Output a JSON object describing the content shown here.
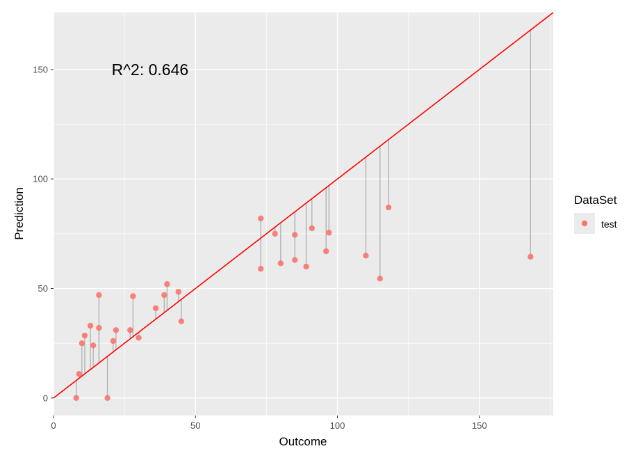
{
  "chart_data": {
    "type": "scatter",
    "xlabel": "Outcome",
    "ylabel": "Prediction",
    "xlim": [
      0,
      176
    ],
    "ylim": [
      -8,
      176
    ],
    "x_ticks": [
      0,
      50,
      100,
      150
    ],
    "x_tick_labels": [
      "0",
      "50",
      "100",
      "150"
    ],
    "y_ticks": [
      0,
      50,
      100,
      150
    ],
    "y_tick_labels": [
      "0",
      "50",
      "100",
      "150"
    ],
    "grid": true,
    "annotation": {
      "text": "R^2: 0.646",
      "x": 34,
      "y": 150
    },
    "reference_line": {
      "type": "identity",
      "color": "#ff0000"
    },
    "residual_segment_color": "#b3b3b3",
    "legend": {
      "title": "DataSet",
      "placement": "right",
      "entries": [
        {
          "label": "test",
          "color": "#f8766d"
        }
      ]
    },
    "series": [
      {
        "name": "test",
        "color": "#f8766d",
        "points": [
          {
            "x": 8,
            "y": 0
          },
          {
            "x": 9,
            "y": 11
          },
          {
            "x": 10,
            "y": 25
          },
          {
            "x": 11,
            "y": 28.5
          },
          {
            "x": 13,
            "y": 33
          },
          {
            "x": 14,
            "y": 24
          },
          {
            "x": 16,
            "y": 47
          },
          {
            "x": 16,
            "y": 32
          },
          {
            "x": 19,
            "y": 0
          },
          {
            "x": 21,
            "y": 26
          },
          {
            "x": 22,
            "y": 31
          },
          {
            "x": 27,
            "y": 31
          },
          {
            "x": 28,
            "y": 46.5
          },
          {
            "x": 30,
            "y": 27.5
          },
          {
            "x": 36,
            "y": 41
          },
          {
            "x": 39,
            "y": 47
          },
          {
            "x": 40,
            "y": 52
          },
          {
            "x": 44,
            "y": 48.5
          },
          {
            "x": 45,
            "y": 35
          },
          {
            "x": 73,
            "y": 82
          },
          {
            "x": 73,
            "y": 59
          },
          {
            "x": 78,
            "y": 75
          },
          {
            "x": 80,
            "y": 61.5
          },
          {
            "x": 85,
            "y": 74.5
          },
          {
            "x": 85,
            "y": 63
          },
          {
            "x": 89,
            "y": 60
          },
          {
            "x": 91,
            "y": 77.5
          },
          {
            "x": 96,
            "y": 67
          },
          {
            "x": 97,
            "y": 75.5
          },
          {
            "x": 110,
            "y": 65
          },
          {
            "x": 115,
            "y": 54.5
          },
          {
            "x": 118,
            "y": 87
          },
          {
            "x": 168,
            "y": 64.5
          }
        ]
      }
    ]
  }
}
